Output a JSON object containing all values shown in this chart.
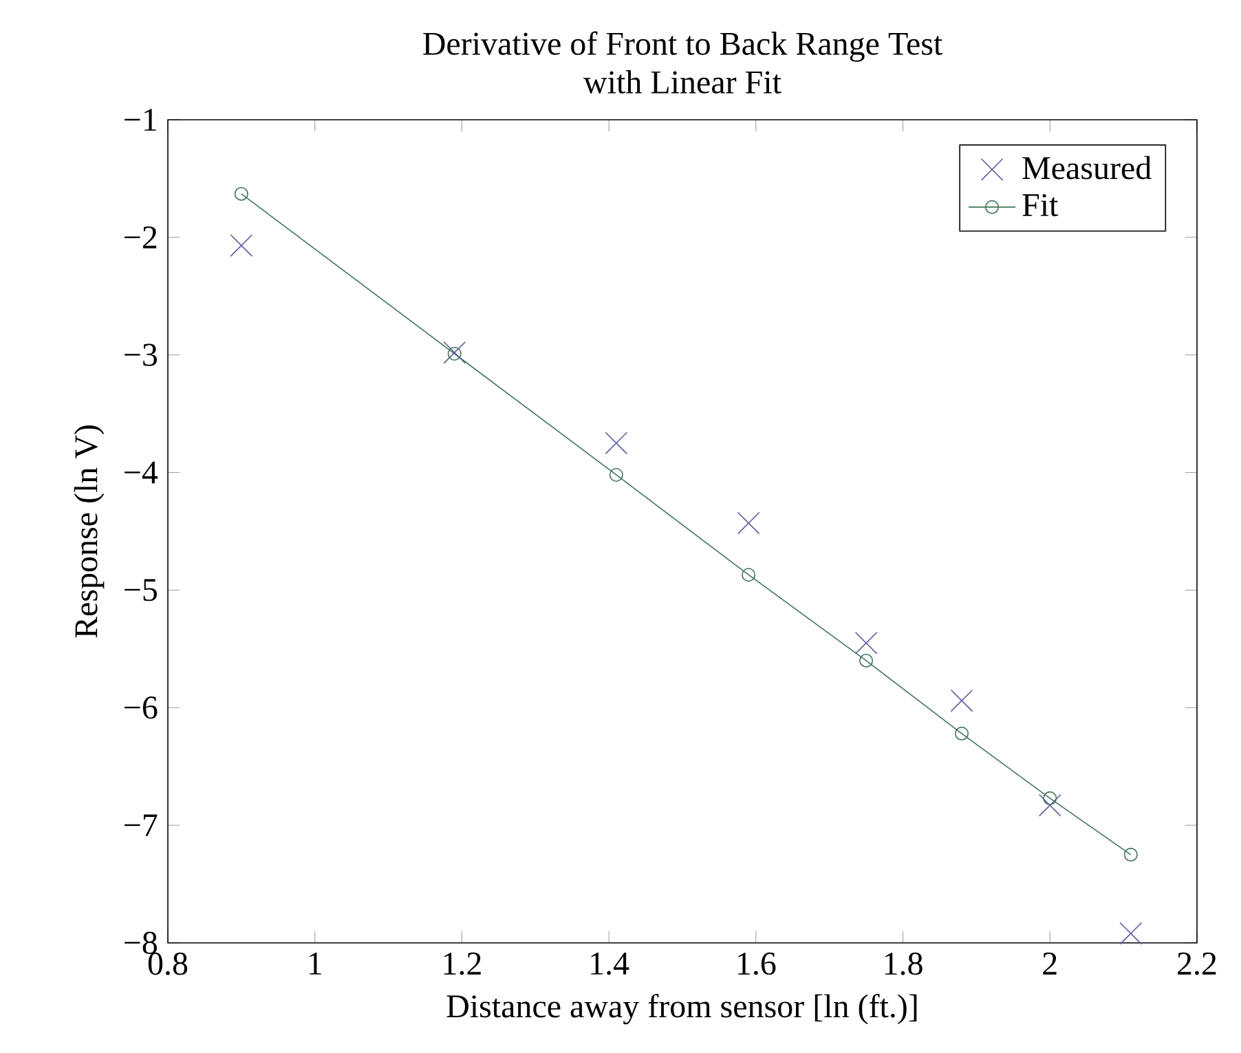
{
  "chart_data": {
    "type": "scatter",
    "title": "Derivative of Front to Back Range Test\nwith Linear Fit",
    "xlabel": "Distance away from sensor [ln (ft.)]",
    "ylabel": "Response (ln V)",
    "xlim": [
      0.8,
      2.2
    ],
    "xticks": [
      0.8,
      1,
      1.2,
      1.4,
      1.6,
      1.8,
      2,
      2.2
    ],
    "ylim": [
      -8,
      -1
    ],
    "yticks": [
      {
        "value": -8,
        "label": "−8"
      },
      {
        "value": -7,
        "label": "−7"
      },
      {
        "value": -6,
        "label": "−6"
      },
      {
        "value": -5,
        "label": "−5"
      },
      {
        "value": -4,
        "label": "−4"
      },
      {
        "value": -3,
        "label": "−3"
      },
      {
        "value": -2,
        "label": "−2"
      },
      {
        "value": -1,
        "label": "−1"
      }
    ],
    "grid": false,
    "legend": "top right",
    "series": [
      {
        "name": "Measured",
        "marker": "cross",
        "color": "#5a5ab4",
        "x": [
          0.9,
          1.19,
          1.41,
          1.59,
          1.75,
          1.88,
          2.0,
          2.11
        ],
        "values": [
          -2.07,
          -2.98,
          -3.75,
          -4.43,
          -5.45,
          -5.94,
          -6.83,
          -7.92
        ]
      },
      {
        "name": "Fit",
        "type": "line",
        "marker": "circle",
        "line_style": "solid",
        "color": "#3d7a5a",
        "x": [
          0.9,
          1.19,
          1.41,
          1.59,
          1.75,
          1.88,
          2.0,
          2.11
        ],
        "values": [
          -1.63,
          -2.99,
          -4.02,
          -4.87,
          -5.6,
          -6.22,
          -6.77,
          -7.25
        ]
      }
    ]
  }
}
